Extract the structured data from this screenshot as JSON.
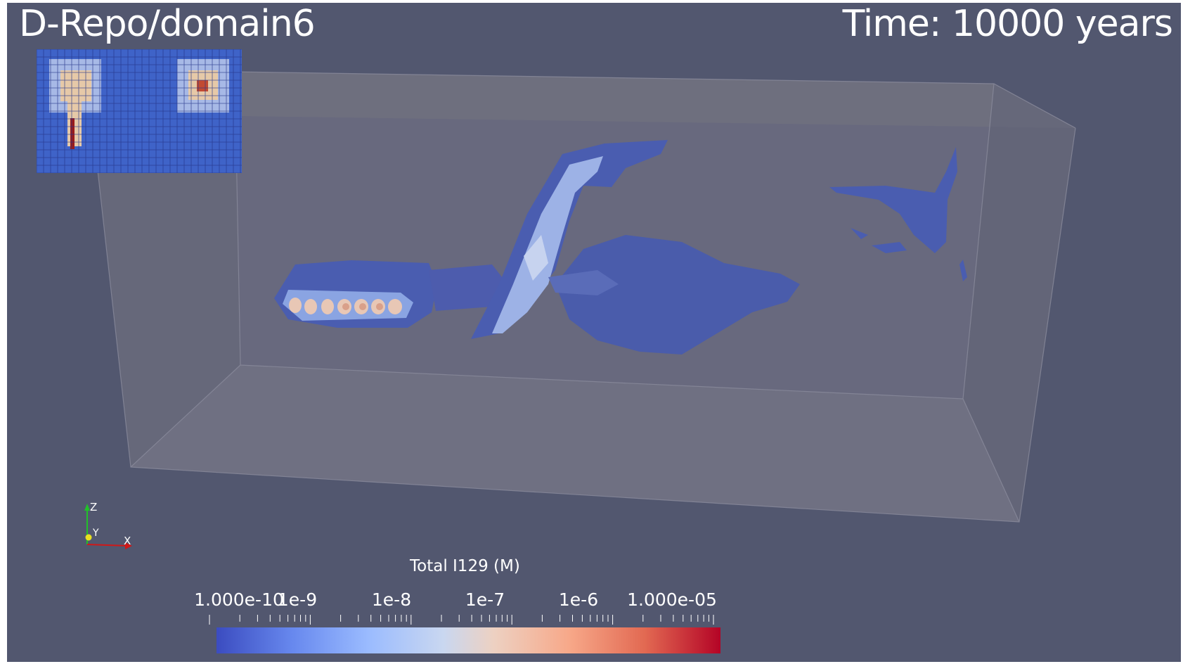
{
  "view": {
    "title": "D-Repo/domain6",
    "time_prefix": "Time:",
    "time_value": "10000",
    "time_unit": "years"
  },
  "colors": {
    "background": "#52576f",
    "box_face": "#6e6f82",
    "plume": "#4a5fae",
    "plume_light": "#aebfe6",
    "colormap_low": "#3b4cc0",
    "colormap_mid": "#dddcdc",
    "colormap_high": "#b40426"
  },
  "axes": {
    "z": "Z",
    "y": "Y",
    "x": "X"
  },
  "legend": {
    "title": "Total I129 (M)",
    "ticks": [
      "1.000e-10",
      "1e-9",
      "1e-8",
      "1e-7",
      "1e-6",
      "1.000e-05"
    ],
    "range": [
      "1.000e-10",
      "1.000e-05"
    ],
    "scale": "log"
  },
  "icons": {
    "orientation_axes": "axes-triad-icon",
    "inset": "domain-minimap-icon"
  }
}
